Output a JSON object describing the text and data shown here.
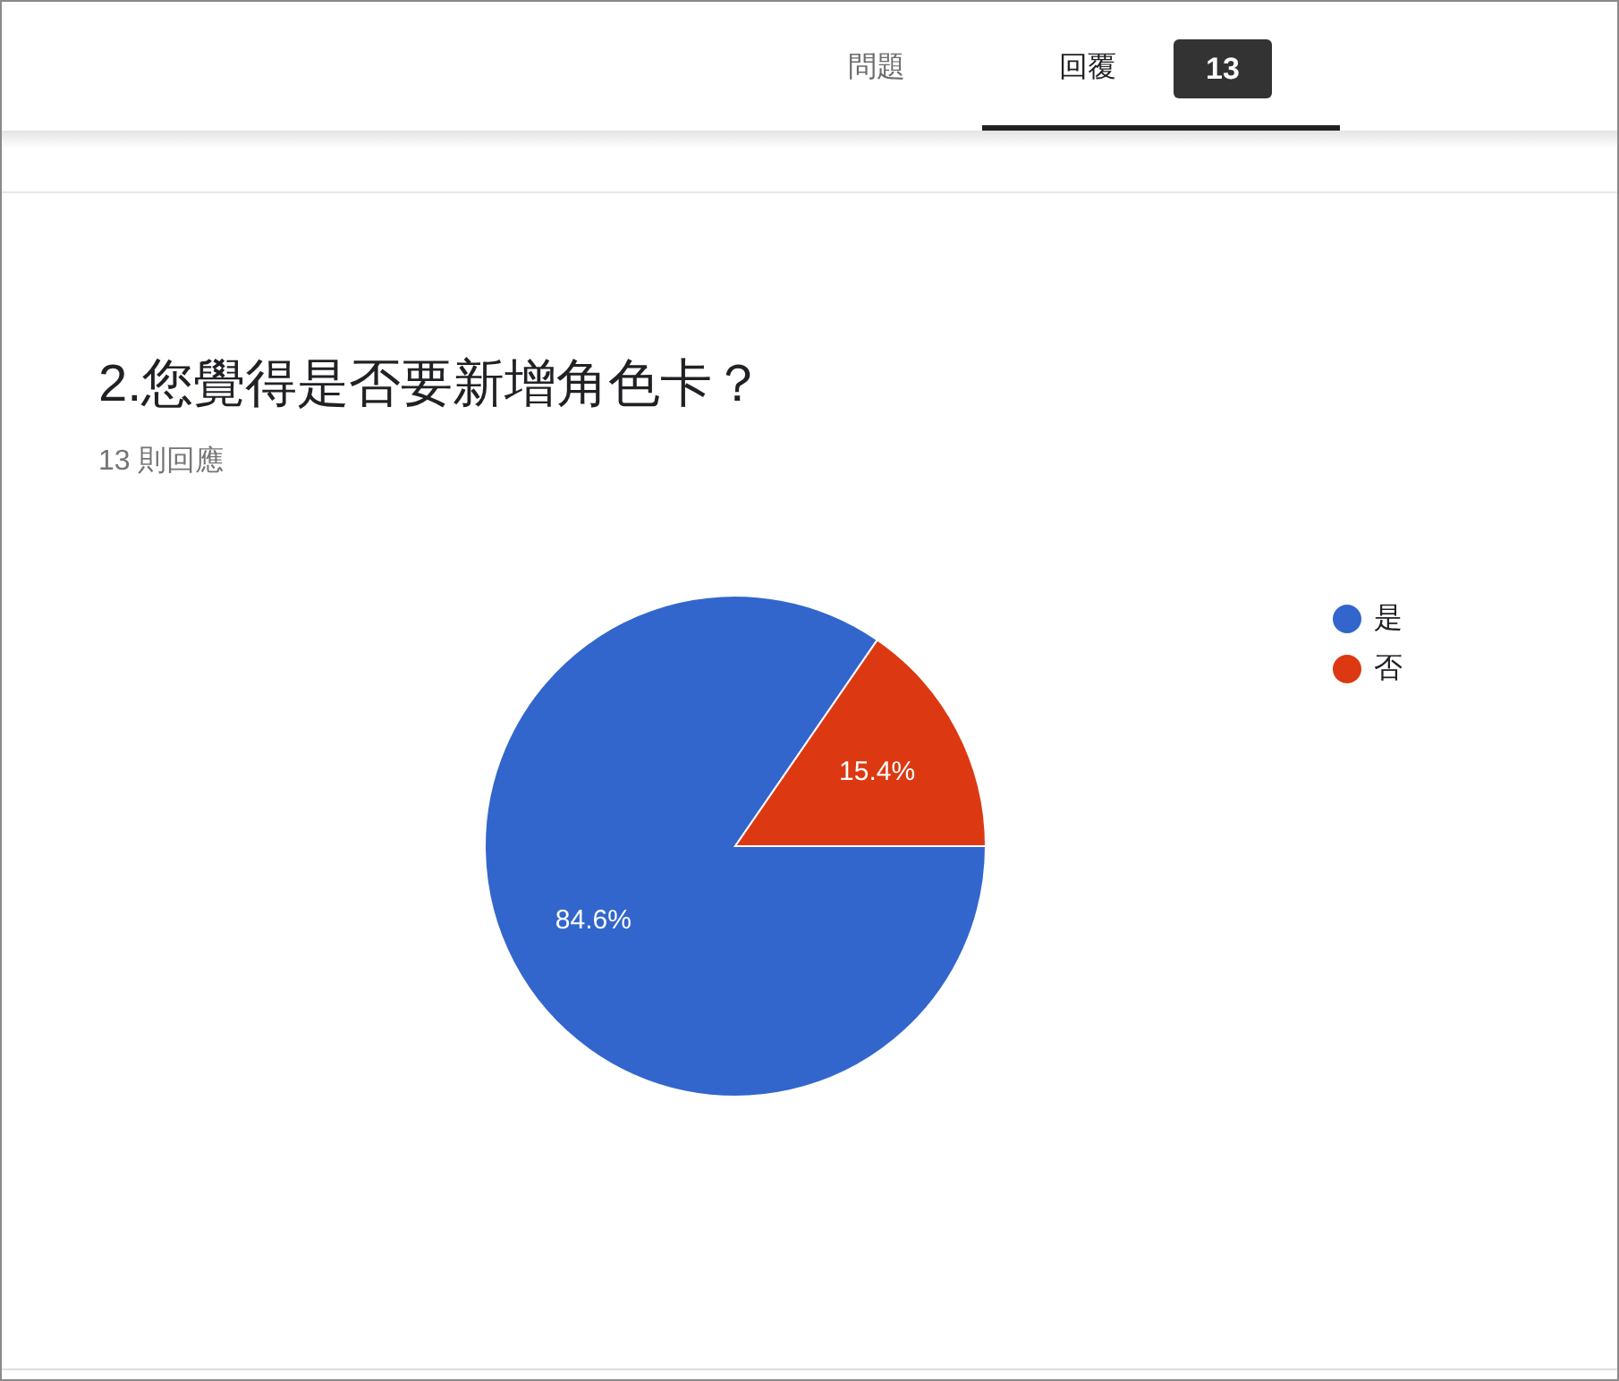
{
  "chart_data": {
    "type": "pie",
    "title": "2.您覺得是否要新增角色卡？",
    "subtitle": "13 則回應",
    "categories": [
      "是",
      "否"
    ],
    "values": [
      84.6,
      15.4
    ],
    "colors": [
      "#3366cc",
      "#dc3912"
    ],
    "value_labels": [
      "84.6%",
      "15.4%"
    ],
    "legend": "top right",
    "annotations": [
      "問題",
      "回覆",
      "13"
    ]
  }
}
